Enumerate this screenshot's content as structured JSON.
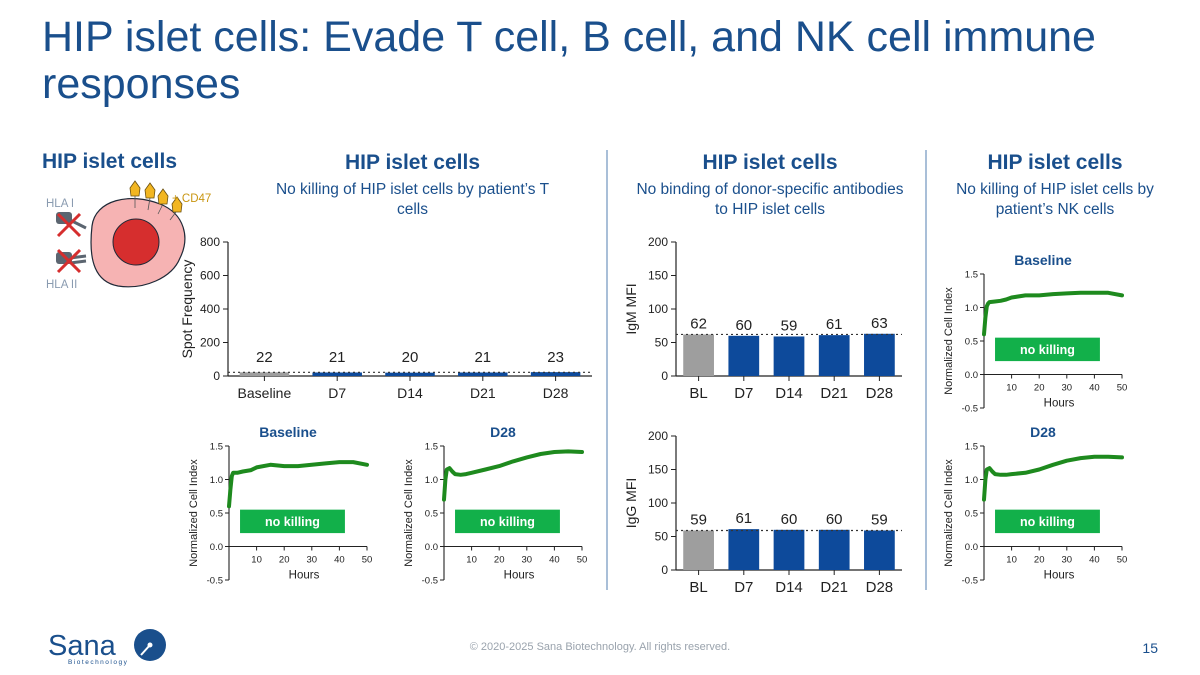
{
  "title": "HIP islet cells: Evade T cell, B cell, and NK cell immune responses",
  "left_header": "HIP islet cells",
  "cell_diagram": {
    "hla1": "HLA I",
    "hla2": "HLA II",
    "cd47": "+ CD47"
  },
  "panels": [
    {
      "heading": "HIP islet cells",
      "subheading": "No killing of HIP islet cells by patient’s T cells"
    },
    {
      "heading": "HIP islet cells",
      "subheading": "No binding of donor-specific antibodies to HIP islet cells"
    },
    {
      "heading": "HIP islet cells",
      "subheading": "No killing of HIP islet cells by patient’s NK cells"
    }
  ],
  "chart_data": [
    {
      "id": "tcell_spot",
      "type": "bar",
      "title": "",
      "xlabel": "",
      "ylabel": "Spot Frequency",
      "categories": [
        "Baseline",
        "D7",
        "D14",
        "D21",
        "D28"
      ],
      "values": [
        22,
        21,
        20,
        21,
        23
      ],
      "ylim": [
        0,
        800
      ],
      "yticks": [
        0,
        200,
        400,
        600,
        800
      ],
      "threshold": 22,
      "colors": [
        "#9e9e9e",
        "#0d4a9b",
        "#0d4a9b",
        "#0d4a9b",
        "#0d4a9b"
      ]
    },
    {
      "id": "igm_mfi",
      "type": "bar",
      "title": "",
      "xlabel": "",
      "ylabel": "IgM MFI",
      "categories": [
        "BL",
        "D7",
        "D14",
        "D21",
        "D28"
      ],
      "values": [
        62,
        60,
        59,
        61,
        63
      ],
      "ylim": [
        0,
        200
      ],
      "yticks": [
        0,
        50,
        100,
        150,
        200
      ],
      "threshold": 62,
      "colors": [
        "#9e9e9e",
        "#0d4a9b",
        "#0d4a9b",
        "#0d4a9b",
        "#0d4a9b"
      ]
    },
    {
      "id": "igg_mfi",
      "type": "bar",
      "title": "",
      "xlabel": "",
      "ylabel": "IgG MFI",
      "categories": [
        "BL",
        "D7",
        "D14",
        "D21",
        "D28"
      ],
      "values": [
        59,
        61,
        60,
        60,
        59
      ],
      "ylim": [
        0,
        200
      ],
      "yticks": [
        0,
        50,
        100,
        150,
        200
      ],
      "threshold": 59,
      "colors": [
        "#9e9e9e",
        "#0d4a9b",
        "#0d4a9b",
        "#0d4a9b",
        "#0d4a9b"
      ]
    },
    {
      "id": "tcell_baseline",
      "type": "line",
      "title": "Baseline",
      "xlabel": "Hours",
      "ylabel": "Normalized Cell Index",
      "xlim": [
        0,
        50
      ],
      "ylim": [
        -0.5,
        1.5
      ],
      "xticks": [
        10,
        20,
        30,
        40,
        50
      ],
      "yticks": [
        "-0.5",
        "0.0",
        "0.5",
        "1.0",
        "1.5"
      ],
      "annotation": "no killing",
      "color": "#1e8a1e",
      "x": [
        0,
        0.5,
        1,
        1.5,
        2,
        3,
        5,
        8,
        10,
        15,
        20,
        25,
        30,
        35,
        40,
        45,
        50
      ],
      "y": [
        0.6,
        0.85,
        1.05,
        1.1,
        1.1,
        1.1,
        1.12,
        1.14,
        1.18,
        1.22,
        1.2,
        1.2,
        1.22,
        1.24,
        1.26,
        1.26,
        1.22
      ]
    },
    {
      "id": "tcell_d28",
      "type": "line",
      "title": "D28",
      "xlabel": "Hours",
      "ylabel": "Normalized Cell Index",
      "xlim": [
        0,
        50
      ],
      "ylim": [
        -0.5,
        1.5
      ],
      "xticks": [
        10,
        20,
        30,
        40,
        50
      ],
      "yticks": [
        "-0.5",
        "0.0",
        "0.5",
        "1.0",
        "1.5"
      ],
      "annotation": "no killing",
      "color": "#1e8a1e",
      "x": [
        0,
        0.5,
        1,
        2,
        3,
        4,
        6,
        8,
        10,
        15,
        20,
        25,
        30,
        35,
        40,
        45,
        50
      ],
      "y": [
        0.7,
        1.0,
        1.15,
        1.17,
        1.12,
        1.08,
        1.07,
        1.08,
        1.1,
        1.15,
        1.2,
        1.27,
        1.33,
        1.38,
        1.41,
        1.42,
        1.41
      ]
    },
    {
      "id": "nk_baseline",
      "type": "line",
      "title": "Baseline",
      "xlabel": "Hours",
      "ylabel": "Normalized Cell Index",
      "xlim": [
        0,
        50
      ],
      "ylim": [
        -0.5,
        1.5
      ],
      "xticks": [
        10,
        20,
        30,
        40,
        50
      ],
      "yticks": [
        "-0.5",
        "0.0",
        "0.5",
        "1.0",
        "1.5"
      ],
      "annotation": "no killing",
      "color": "#1e8a1e",
      "x": [
        0,
        0.5,
        1,
        1.5,
        2,
        4,
        6,
        8,
        10,
        15,
        20,
        25,
        30,
        35,
        40,
        45,
        50
      ],
      "y": [
        0.6,
        0.85,
        1.02,
        1.06,
        1.08,
        1.09,
        1.1,
        1.12,
        1.15,
        1.18,
        1.18,
        1.2,
        1.21,
        1.22,
        1.22,
        1.22,
        1.18
      ]
    },
    {
      "id": "nk_d28",
      "type": "line",
      "title": "D28",
      "xlabel": "Hours",
      "ylabel": "Normalized Cell Index",
      "xlim": [
        0,
        50
      ],
      "ylim": [
        -0.5,
        1.5
      ],
      "xticks": [
        10,
        20,
        30,
        40,
        50
      ],
      "yticks": [
        "-0.5",
        "0.0",
        "0.5",
        "1.0",
        "1.5"
      ],
      "annotation": "no killing",
      "color": "#1e8a1e",
      "x": [
        0,
        0.5,
        1,
        2,
        3,
        4,
        6,
        8,
        10,
        15,
        20,
        25,
        30,
        35,
        40,
        45,
        50
      ],
      "y": [
        0.7,
        1.0,
        1.15,
        1.17,
        1.12,
        1.08,
        1.07,
        1.07,
        1.08,
        1.1,
        1.15,
        1.22,
        1.28,
        1.32,
        1.34,
        1.34,
        1.33
      ]
    }
  ],
  "footer": "© 2020-2025 Sana Biotechnology. All rights reserved.",
  "page_number": "15",
  "logo": {
    "name": "Sana",
    "tagline": "Biotechnology"
  },
  "colors": {
    "brand_blue": "#1a4f8c",
    "bar_blue": "#0d4a9b",
    "bar_gray": "#9e9e9e",
    "green": "#1e8a1e",
    "badge_green": "#12b04a"
  }
}
